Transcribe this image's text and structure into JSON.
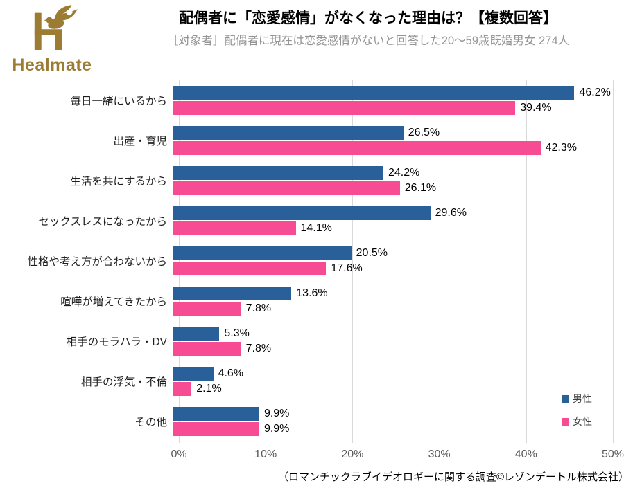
{
  "logo": {
    "brand": "Healmate",
    "gold": "#9C7C32"
  },
  "header": {
    "title": "配偶者に「恋愛感情」がなくなった理由は？【複数回答】",
    "subtitle": "［対象者］配偶者に現在は恋愛感情がないと回答した20〜59歳既婚男女 274人"
  },
  "chart_data": {
    "type": "bar",
    "orientation": "horizontal",
    "title": "配偶者に「恋愛感情」がなくなった理由は？【複数回答】",
    "categories": [
      "毎日一緒にいるから",
      "出産・育児",
      "生活を共にするから",
      "セックスレスになったから",
      "性格や考え方が合わないから",
      "喧嘩が増えてきたから",
      "相手のモラハラ・DV",
      "相手の浮気・不倫",
      "その他"
    ],
    "series": [
      {
        "name": "男性",
        "color": "#2A6099",
        "values": [
          46.2,
          26.5,
          24.2,
          29.6,
          20.5,
          13.6,
          5.3,
          4.6,
          9.9
        ]
      },
      {
        "name": "女性",
        "color": "#F74C93",
        "values": [
          39.4,
          42.3,
          26.1,
          14.1,
          17.6,
          7.8,
          7.8,
          2.1,
          9.9
        ]
      }
    ],
    "xlim": [
      0,
      50
    ],
    "x_ticks": [
      "0%",
      "10%",
      "20%",
      "30%",
      "40%",
      "50%"
    ],
    "value_suffix": "%",
    "grid": "vertical",
    "gridline_color": "#d9d9d9",
    "legend_position": "bottom-right"
  },
  "footer": {
    "source": "（ロマンチックラブイデオロギーに関する調査©レゾンデートル株式会社）"
  }
}
